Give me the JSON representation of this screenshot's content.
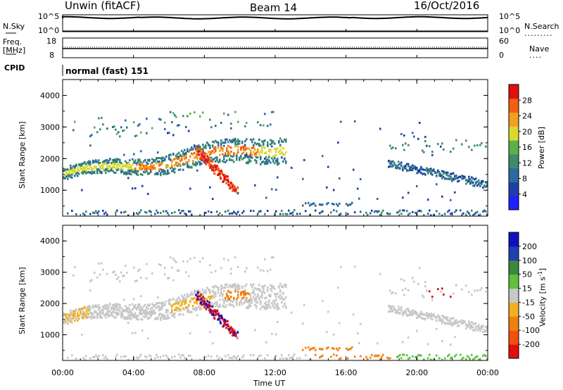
{
  "header": {
    "title": "Unwin (fitACF)",
    "beam": "Beam 14",
    "date": "16/Oct/2016"
  },
  "top_panels": {
    "nsky_label": "N.Sky",
    "nsky_ticks": [
      "10^5",
      "10^0"
    ],
    "nsearch_label": "N.Search",
    "nsearch_ticks": [
      "10^5",
      "10^0"
    ],
    "freq_label": "Freq.",
    "freq_unit": "[MHz]",
    "freq_ticks": [
      "18",
      "8"
    ],
    "nave_label": "Nave",
    "nave_ticks": [
      "60",
      "0"
    ],
    "cpid_label": "CPID",
    "cpid_value": "normal (fast) 151"
  },
  "chart_data": [
    {
      "type": "heatmap",
      "quantity": "Power",
      "ylabel": "Slant Range [km]",
      "xlabel": "",
      "x_ticks": [
        "00:00",
        "04:00",
        "08:00",
        "12:00",
        "16:00",
        "20:00",
        "00:00"
      ],
      "x_range_hours": [
        0,
        24
      ],
      "ylim": [
        180,
        4500
      ],
      "y_ticks": [
        1000,
        2000,
        3000,
        4000
      ],
      "colorbar": {
        "label": "Power [dB]",
        "ticks": [
          4,
          8,
          12,
          16,
          20,
          24,
          28
        ],
        "range": [
          0,
          32
        ],
        "colors": [
          "#2020ff",
          "#1f3fa8",
          "#2a6aa0",
          "#3c8c6a",
          "#5fb04a",
          "#d8d830",
          "#f0a020",
          "#f06010",
          "#e01010"
        ]
      },
      "features": [
        {
          "name": "main band",
          "hours": [
            0,
            12.5
          ],
          "range_km_start": 1450,
          "range_km_end": 2600
        },
        {
          "name": "descending echo",
          "hours": [
            7.5,
            9.5
          ],
          "range_km": [
            2400,
            850
          ]
        },
        {
          "name": "evening band",
          "hours": [
            18.5,
            24
          ],
          "range_km": [
            1800,
            1150
          ]
        },
        {
          "name": "near-range scatter",
          "hours": [
            0,
            24
          ],
          "range_km": [
            200,
            350
          ]
        }
      ]
    },
    {
      "type": "heatmap",
      "quantity": "Velocity",
      "ylabel": "Slant Range [km]",
      "xlabel": "Time UT",
      "x_ticks": [
        "00:00",
        "04:00",
        "08:00",
        "12:00",
        "16:00",
        "20:00",
        "00:00"
      ],
      "x_range_hours": [
        0,
        24
      ],
      "ylim": [
        180,
        4500
      ],
      "y_ticks": [
        1000,
        2000,
        3000,
        4000
      ],
      "colorbar": {
        "label": "Velocity [m s",
        "label_sup": "-1",
        "label_end": "]",
        "ticks": [
          200,
          100,
          50,
          15,
          -15,
          -50,
          -100,
          -200
        ],
        "colors": [
          "#1010c0",
          "#2040b0",
          "#3a8a3a",
          "#60c040",
          "#c8c8c8",
          "#f0b020",
          "#f08010",
          "#f05010",
          "#e01010"
        ]
      }
    }
  ]
}
